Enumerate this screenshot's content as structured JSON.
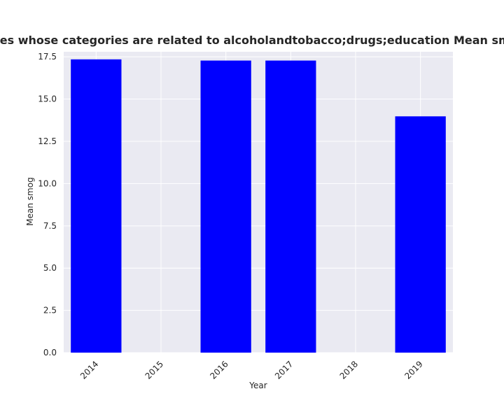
{
  "chart_data": {
    "type": "bar",
    "title": "Mean smog of privacy policies whose categories are related to alcoholandtobacco;drugs;education Mean smog in privacy policies by year",
    "xlabel": "Year",
    "ylabel": "Mean smog",
    "categories": [
      "2014",
      "2015",
      "2016",
      "2017",
      "2018",
      "2019"
    ],
    "values": [
      17.35,
      null,
      17.28,
      17.28,
      null,
      13.98
    ],
    "ylim": [
      0,
      17.8
    ],
    "yticks": [
      "0.0",
      "2.5",
      "5.0",
      "7.5",
      "10.0",
      "12.5",
      "15.0",
      "17.5"
    ],
    "grid": true,
    "legend": "none",
    "colors": {
      "bar": "#0000ff",
      "plot_background": "#eaeaf2",
      "grid": "#ffffff",
      "text": "#262626"
    }
  }
}
